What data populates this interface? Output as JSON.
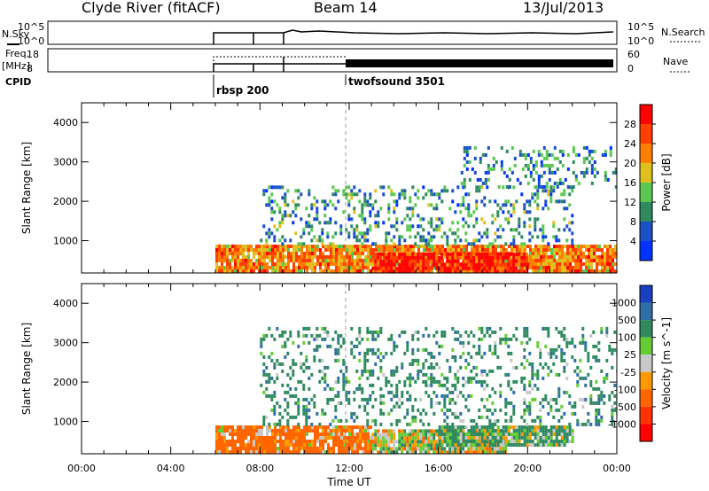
{
  "header": {
    "title": "Clyde River (fitACF)",
    "beam": "Beam 14",
    "date": "13/Jul/2013"
  },
  "nsky_panel": {
    "left_label": "N.Sky",
    "right_label": "N.Search",
    "left_ticks": [
      "10^5",
      "10^0"
    ],
    "right_ticks": [
      "10^5",
      "10^0"
    ]
  },
  "freq_panel": {
    "left_label_1": "Freq.",
    "left_label_2": "[MHz]",
    "right_label": "Nave",
    "left_ticks": [
      "18",
      "8"
    ],
    "right_ticks": [
      "60",
      "0"
    ]
  },
  "cpid": {
    "label": "CPID",
    "programs": [
      {
        "name": "rbsp 200",
        "start_hour": 6
      },
      {
        "name": "twofsound 3501",
        "start_hour": 12
      }
    ]
  },
  "chart_data": [
    {
      "type": "heatmap",
      "title": "",
      "xlabel": "",
      "ylabel": "Slant Range [km]",
      "xlim": [
        0,
        24
      ],
      "ylim": [
        180,
        4500
      ],
      "yticks": [
        1000,
        2000,
        3000,
        4000
      ],
      "colorbar": {
        "label": "Power [dB]",
        "ticks": [
          "4",
          "8",
          "12",
          "16",
          "20",
          "24",
          "28"
        ],
        "range": [
          0,
          30
        ],
        "colors": [
          "#0033ff",
          "#1a50c8",
          "#2f8a60",
          "#5ac850",
          "#e0c020",
          "#ff8000",
          "#ff4000",
          "#ff0000"
        ]
      },
      "regions": [
        {
          "x": [
            6,
            24
          ],
          "y": [
            180,
            900
          ],
          "value": 22
        },
        {
          "x": [
            13,
            20
          ],
          "y": [
            200,
            700
          ],
          "value": 28
        },
        {
          "x": [
            8,
            22
          ],
          "y": [
            900,
            2400
          ],
          "value": 10
        },
        {
          "x": [
            17,
            24
          ],
          "y": [
            2400,
            3400
          ],
          "value": 9
        }
      ]
    },
    {
      "type": "heatmap",
      "title": "",
      "xlabel": "Time UT",
      "ylabel": "Slant Range [km]",
      "xlim": [
        0,
        24
      ],
      "ylim": [
        180,
        4500
      ],
      "yticks": [
        1000,
        2000,
        3000,
        4000
      ],
      "xticks": [
        "00:00",
        "04:00",
        "08:00",
        "12:00",
        "16:00",
        "20:00",
        "00:00"
      ],
      "colorbar": {
        "label": "Velocity [m s^-1]",
        "ticks": [
          "1000",
          "500",
          "100",
          "25",
          "-25",
          "-100",
          "-500",
          "-1000"
        ],
        "colors": [
          "#1a40c0",
          "#2f6fa8",
          "#2f8a60",
          "#66cc33",
          "#c8c8c8",
          "#ff9900",
          "#ff6600",
          "#ff3300",
          "#ff0000"
        ]
      },
      "regions": [
        {
          "x": [
            6,
            13
          ],
          "y": [
            180,
            900
          ],
          "value": -200
        },
        {
          "x": [
            13,
            19
          ],
          "y": [
            200,
            800
          ],
          "value": 10
        },
        {
          "x": [
            16,
            22
          ],
          "y": [
            400,
            900
          ],
          "value": 150
        },
        {
          "x": [
            8,
            24
          ],
          "y": [
            900,
            3400
          ],
          "value": 300
        }
      ]
    }
  ]
}
